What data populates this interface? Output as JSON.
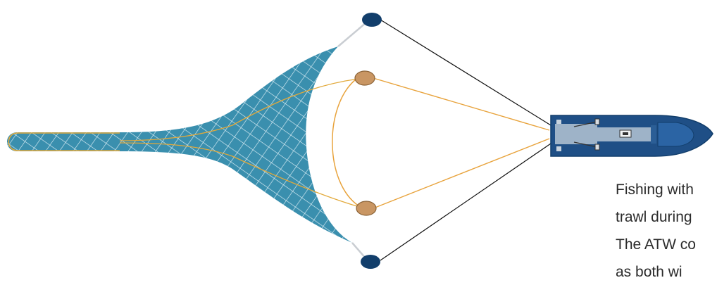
{
  "caption": {
    "line1": "Fishing with",
    "line2": "trawl during",
    "line3": "The ATW co",
    "line4": "as both wi"
  },
  "colors": {
    "net_fill": "#3a8fae",
    "net_mesh": "#dbeef5",
    "net_outline": "#e2a93a",
    "orange_line": "#e8a33c",
    "float_fill": "#c99663",
    "float_stroke": "#8a6236",
    "door_fill": "#123e6b",
    "warp_line": "#111111",
    "vessel_hull": "#1f4f86",
    "vessel_deck": "#9eb3c8"
  },
  "icons": [
    "trawl-net-icon",
    "float-icon",
    "trawl-door-icon",
    "vessel-icon"
  ]
}
